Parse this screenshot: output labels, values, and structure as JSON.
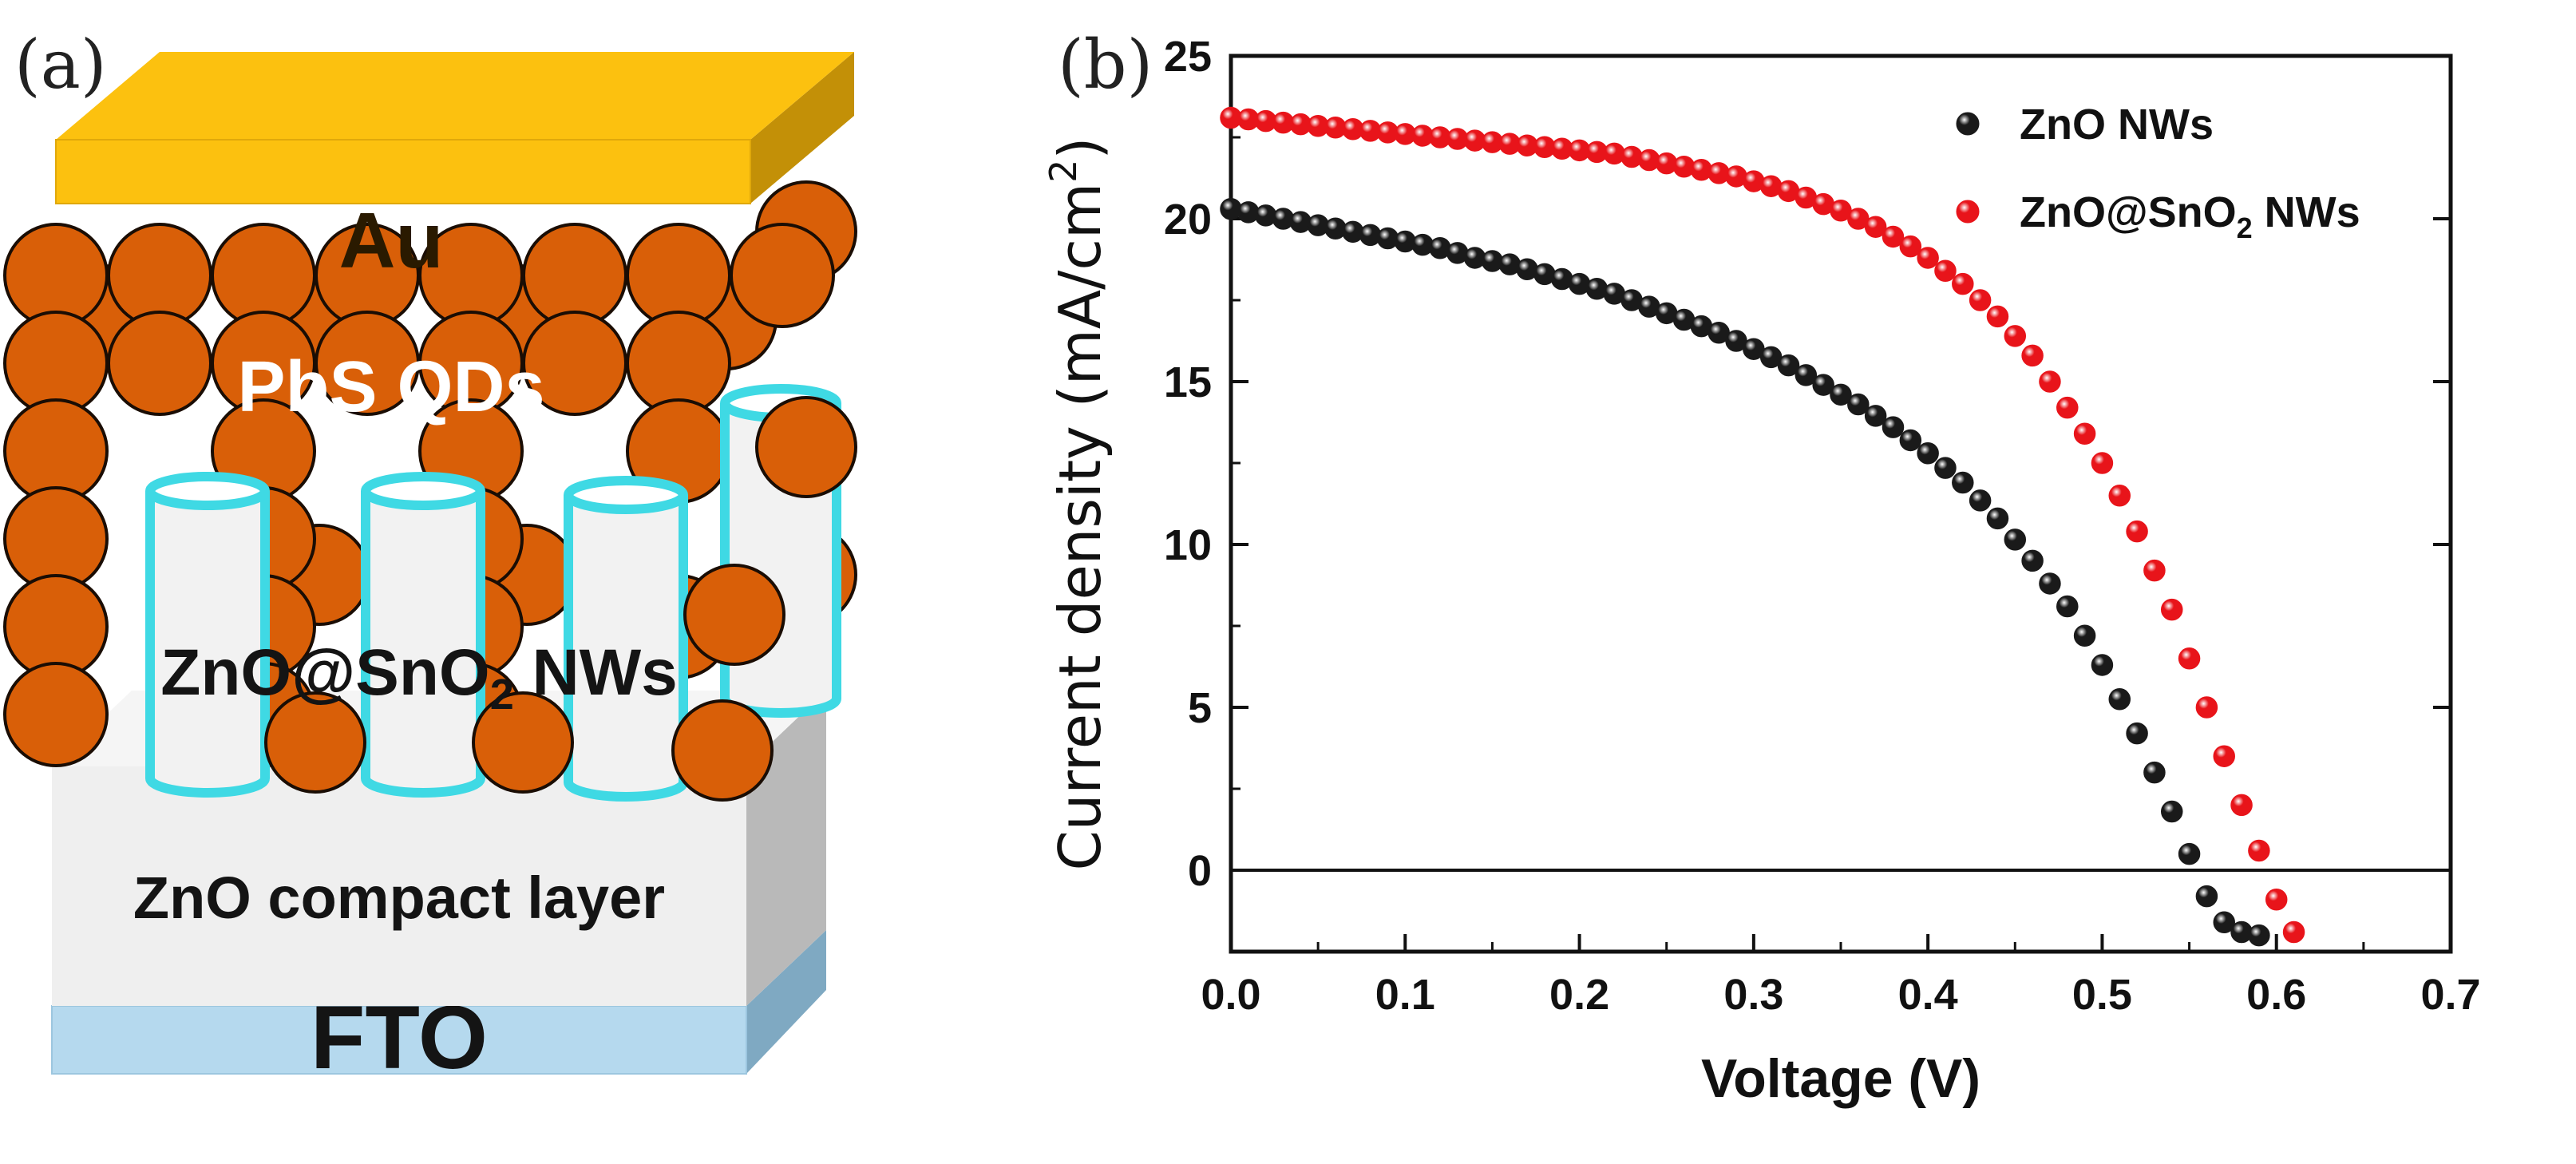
{
  "panel_a": {
    "label": "(a)",
    "layers": {
      "top_electrode": "Au",
      "absorber": "PbS QDs",
      "nanowires": {
        "pre": "ZnO@SnO",
        "sub": "2",
        "post": " NWs"
      },
      "compact": "ZnO compact layer",
      "substrate": "FTO"
    },
    "colors": {
      "au": "#fcc10f",
      "qd": "#d95f08",
      "nw_outline": "#3fd9e4",
      "compact": "#efefef",
      "fto": "#b5d9ee"
    }
  },
  "panel_b": {
    "label": "(b)"
  },
  "chart_data": {
    "type": "scatter",
    "xlabel": "Voltage (V)",
    "ylabel": {
      "pre": "Current density (mA/cm",
      "sup": "2",
      "post": ")"
    },
    "xlim": [
      0,
      0.7
    ],
    "ylim": [
      -2.5,
      25
    ],
    "xticks": [
      "0.0",
      "0.1",
      "0.2",
      "0.3",
      "0.4",
      "0.5",
      "0.6",
      "0.7"
    ],
    "yticks": [
      "0",
      "5",
      "10",
      "15",
      "20",
      "25"
    ],
    "reference_line_y": 0,
    "legend_position": "top-right",
    "series": [
      {
        "name": "ZnO NWs",
        "legend": {
          "pre": "ZnO NWs",
          "sub": "",
          "post": ""
        },
        "color": "#1a1a1a",
        "x": [
          0.0,
          0.01,
          0.02,
          0.03,
          0.04,
          0.05,
          0.06,
          0.07,
          0.08,
          0.09,
          0.1,
          0.11,
          0.12,
          0.13,
          0.14,
          0.15,
          0.16,
          0.17,
          0.18,
          0.19,
          0.2,
          0.21,
          0.22,
          0.23,
          0.24,
          0.25,
          0.26,
          0.27,
          0.28,
          0.29,
          0.3,
          0.31,
          0.32,
          0.33,
          0.34,
          0.35,
          0.36,
          0.37,
          0.38,
          0.39,
          0.4,
          0.41,
          0.42,
          0.43,
          0.44,
          0.45,
          0.46,
          0.47,
          0.48,
          0.49,
          0.5,
          0.51,
          0.52,
          0.53,
          0.54,
          0.55,
          0.56,
          0.57,
          0.58,
          0.59
        ],
        "y": [
          20.3,
          20.2,
          20.1,
          20.0,
          19.9,
          19.8,
          19.7,
          19.6,
          19.5,
          19.4,
          19.3,
          19.2,
          19.1,
          18.95,
          18.8,
          18.7,
          18.6,
          18.45,
          18.3,
          18.15,
          18.0,
          17.85,
          17.7,
          17.5,
          17.3,
          17.1,
          16.9,
          16.7,
          16.5,
          16.25,
          16.0,
          15.75,
          15.5,
          15.2,
          14.9,
          14.6,
          14.3,
          13.95,
          13.6,
          13.2,
          12.8,
          12.35,
          11.9,
          11.35,
          10.8,
          10.15,
          9.5,
          8.8,
          8.1,
          7.2,
          6.3,
          5.25,
          4.2,
          3.0,
          1.8,
          0.5,
          -0.8,
          -1.6,
          -1.9,
          -2.0
        ]
      },
      {
        "name": "ZnO@SnO2 NWs",
        "legend": {
          "pre": "ZnO@SnO",
          "sub": "2",
          "post": " NWs"
        },
        "color": "#e8141a",
        "x": [
          0.0,
          0.01,
          0.02,
          0.03,
          0.04,
          0.05,
          0.06,
          0.07,
          0.08,
          0.09,
          0.1,
          0.11,
          0.12,
          0.13,
          0.14,
          0.15,
          0.16,
          0.17,
          0.18,
          0.19,
          0.2,
          0.21,
          0.22,
          0.23,
          0.24,
          0.25,
          0.26,
          0.27,
          0.28,
          0.29,
          0.3,
          0.31,
          0.32,
          0.33,
          0.34,
          0.35,
          0.36,
          0.37,
          0.38,
          0.39,
          0.4,
          0.41,
          0.42,
          0.43,
          0.44,
          0.45,
          0.46,
          0.47,
          0.48,
          0.49,
          0.5,
          0.51,
          0.52,
          0.53,
          0.54,
          0.55,
          0.56,
          0.57,
          0.58,
          0.59,
          0.6,
          0.61
        ],
        "y": [
          23.1,
          23.05,
          23.0,
          22.95,
          22.9,
          22.85,
          22.8,
          22.75,
          22.7,
          22.65,
          22.6,
          22.55,
          22.5,
          22.45,
          22.4,
          22.35,
          22.3,
          22.25,
          22.2,
          22.15,
          22.1,
          22.05,
          22.0,
          21.9,
          21.8,
          21.7,
          21.6,
          21.5,
          21.4,
          21.3,
          21.15,
          21.0,
          20.85,
          20.65,
          20.45,
          20.25,
          20.0,
          19.75,
          19.45,
          19.15,
          18.8,
          18.4,
          18.0,
          17.5,
          17.0,
          16.4,
          15.8,
          15.0,
          14.2,
          13.4,
          12.5,
          11.5,
          10.4,
          9.2,
          8.0,
          6.5,
          5.0,
          3.5,
          2.0,
          0.6,
          -0.9,
          -1.9
        ]
      }
    ]
  }
}
